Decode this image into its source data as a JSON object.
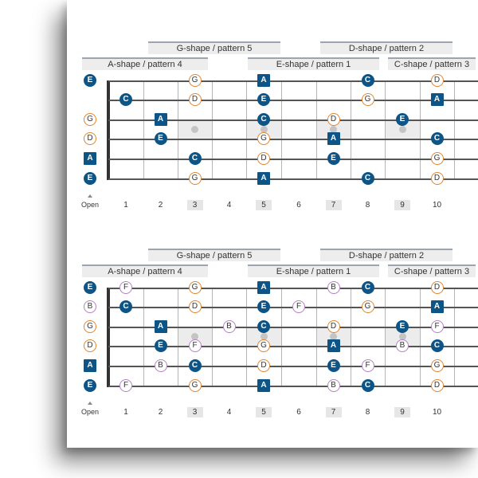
{
  "open_label": "Open",
  "fret_numbers": [
    "1",
    "2",
    "3",
    "4",
    "5",
    "6",
    "7",
    "8",
    "9",
    "10"
  ],
  "highlighted_frets": [
    3,
    5,
    7,
    9
  ],
  "diagrams": [
    {
      "shape_labels_top": [
        "G-shape / pattern 5",
        "D-shape / pattern 2"
      ],
      "shape_labels_bottom": [
        "A-shape / pattern 4",
        "E-shape / pattern 1",
        "C-shape / pattern 3"
      ],
      "open_notes": [
        "E",
        "",
        "G",
        "D",
        "A",
        "E"
      ],
      "notes": [
        {
          "s": 0,
          "f": 3,
          "n": "G"
        },
        {
          "s": 0,
          "f": 5,
          "n": "A"
        },
        {
          "s": 0,
          "f": 8,
          "n": "C"
        },
        {
          "s": 0,
          "f": 10,
          "n": "D"
        },
        {
          "s": 1,
          "f": 1,
          "n": "C"
        },
        {
          "s": 1,
          "f": 3,
          "n": "D"
        },
        {
          "s": 1,
          "f": 5,
          "n": "E"
        },
        {
          "s": 1,
          "f": 8,
          "n": "G"
        },
        {
          "s": 1,
          "f": 10,
          "n": "A"
        },
        {
          "s": 2,
          "f": 2,
          "n": "A"
        },
        {
          "s": 2,
          "f": 5,
          "n": "C"
        },
        {
          "s": 2,
          "f": 7,
          "n": "D"
        },
        {
          "s": 2,
          "f": 9,
          "n": "E"
        },
        {
          "s": 3,
          "f": 2,
          "n": "E"
        },
        {
          "s": 3,
          "f": 5,
          "n": "G"
        },
        {
          "s": 3,
          "f": 7,
          "n": "A"
        },
        {
          "s": 3,
          "f": 10,
          "n": "C"
        },
        {
          "s": 4,
          "f": 3,
          "n": "C"
        },
        {
          "s": 4,
          "f": 5,
          "n": "D"
        },
        {
          "s": 4,
          "f": 7,
          "n": "E"
        },
        {
          "s": 4,
          "f": 10,
          "n": "G"
        },
        {
          "s": 5,
          "f": 3,
          "n": "G"
        },
        {
          "s": 5,
          "f": 5,
          "n": "A"
        },
        {
          "s": 5,
          "f": 8,
          "n": "C"
        },
        {
          "s": 5,
          "f": 10,
          "n": "D"
        }
      ]
    },
    {
      "shape_labels_top": [
        "G-shape / pattern 5",
        "D-shape / pattern 2"
      ],
      "shape_labels_bottom": [
        "A-shape / pattern 4",
        "E-shape / pattern 1",
        "C-shape / pattern 3"
      ],
      "open_notes": [
        "E",
        "B",
        "G",
        "D",
        "A",
        "E"
      ],
      "notes": [
        {
          "s": 0,
          "f": 1,
          "n": "F"
        },
        {
          "s": 0,
          "f": 3,
          "n": "G"
        },
        {
          "s": 0,
          "f": 5,
          "n": "A"
        },
        {
          "s": 0,
          "f": 7,
          "n": "B"
        },
        {
          "s": 0,
          "f": 8,
          "n": "C"
        },
        {
          "s": 0,
          "f": 10,
          "n": "D"
        },
        {
          "s": 1,
          "f": 1,
          "n": "C"
        },
        {
          "s": 1,
          "f": 3,
          "n": "D"
        },
        {
          "s": 1,
          "f": 5,
          "n": "E"
        },
        {
          "s": 1,
          "f": 6,
          "n": "F"
        },
        {
          "s": 1,
          "f": 8,
          "n": "G"
        },
        {
          "s": 1,
          "f": 10,
          "n": "A"
        },
        {
          "s": 2,
          "f": 2,
          "n": "A"
        },
        {
          "s": 2,
          "f": 4,
          "n": "B"
        },
        {
          "s": 2,
          "f": 5,
          "n": "C"
        },
        {
          "s": 2,
          "f": 7,
          "n": "D"
        },
        {
          "s": 2,
          "f": 9,
          "n": "E"
        },
        {
          "s": 2,
          "f": 10,
          "n": "F"
        },
        {
          "s": 3,
          "f": 2,
          "n": "E"
        },
        {
          "s": 3,
          "f": 3,
          "n": "F"
        },
        {
          "s": 3,
          "f": 5,
          "n": "G"
        },
        {
          "s": 3,
          "f": 7,
          "n": "A"
        },
        {
          "s": 3,
          "f": 9,
          "n": "B"
        },
        {
          "s": 3,
          "f": 10,
          "n": "C"
        },
        {
          "s": 4,
          "f": 2,
          "n": "B"
        },
        {
          "s": 4,
          "f": 3,
          "n": "C"
        },
        {
          "s": 4,
          "f": 5,
          "n": "D"
        },
        {
          "s": 4,
          "f": 7,
          "n": "E"
        },
        {
          "s": 4,
          "f": 8,
          "n": "F"
        },
        {
          "s": 4,
          "f": 10,
          "n": "G"
        },
        {
          "s": 5,
          "f": 1,
          "n": "F"
        },
        {
          "s": 5,
          "f": 3,
          "n": "G"
        },
        {
          "s": 5,
          "f": 5,
          "n": "A"
        },
        {
          "s": 5,
          "f": 7,
          "n": "B"
        },
        {
          "s": 5,
          "f": 8,
          "n": "C"
        },
        {
          "s": 5,
          "f": 10,
          "n": "D"
        }
      ]
    }
  ]
}
